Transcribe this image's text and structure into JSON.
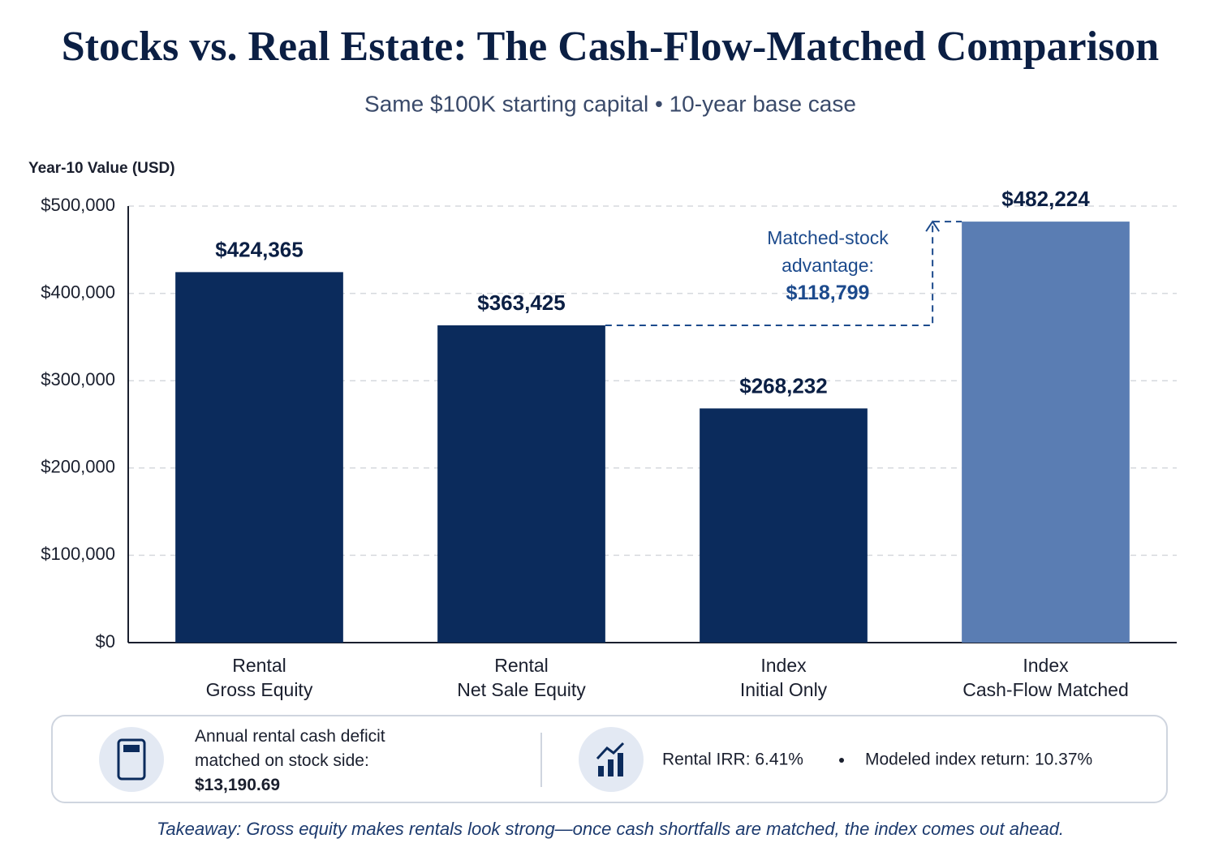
{
  "chart_data": {
    "type": "bar",
    "title": "Stocks vs. Real Estate: The Cash-Flow-Matched Comparison",
    "subtitle": "Same $100K starting capital • 10-year base case",
    "y_label": "Year-10 Value (USD)",
    "categories": [
      "Rental\nGross Equity",
      "Rental\nNet Sale Equity",
      "Index\nInitial Only",
      "Index\nCash-Flow Matched"
    ],
    "values": [
      424365,
      363425,
      268232,
      482224
    ],
    "value_labels": [
      "$424,365",
      "$363,425",
      "$268,232",
      "$482,224"
    ],
    "colors": [
      "#0b2b5c",
      "#0b2b5c",
      "#0b2b5c",
      "#5a7db3"
    ],
    "ylim": [
      0,
      500000
    ],
    "yticks": [
      {
        "value": 0,
        "label": "$0"
      },
      {
        "value": 100000,
        "label": "$100,000"
      },
      {
        "value": 200000,
        "label": "$200,000"
      },
      {
        "value": 300000,
        "label": "$300,000"
      },
      {
        "value": 400000,
        "label": "$400,000"
      },
      {
        "value": 500000,
        "label": "$500,000"
      }
    ],
    "grid": true,
    "annotation": {
      "text": "Matched-stock advantage:",
      "value_label": "$118,799"
    }
  },
  "info_panel": {
    "left": {
      "text": "Annual rental cash deficit matched on stock side:",
      "value": "$13,190.69"
    },
    "right": [
      "Rental IRR: 6.41%",
      "Modeled index return: 10.37%"
    ]
  },
  "takeaway": "Takeaway: Gross equity makes rentals look strong—once cash shortfalls are matched, the index comes out ahead."
}
